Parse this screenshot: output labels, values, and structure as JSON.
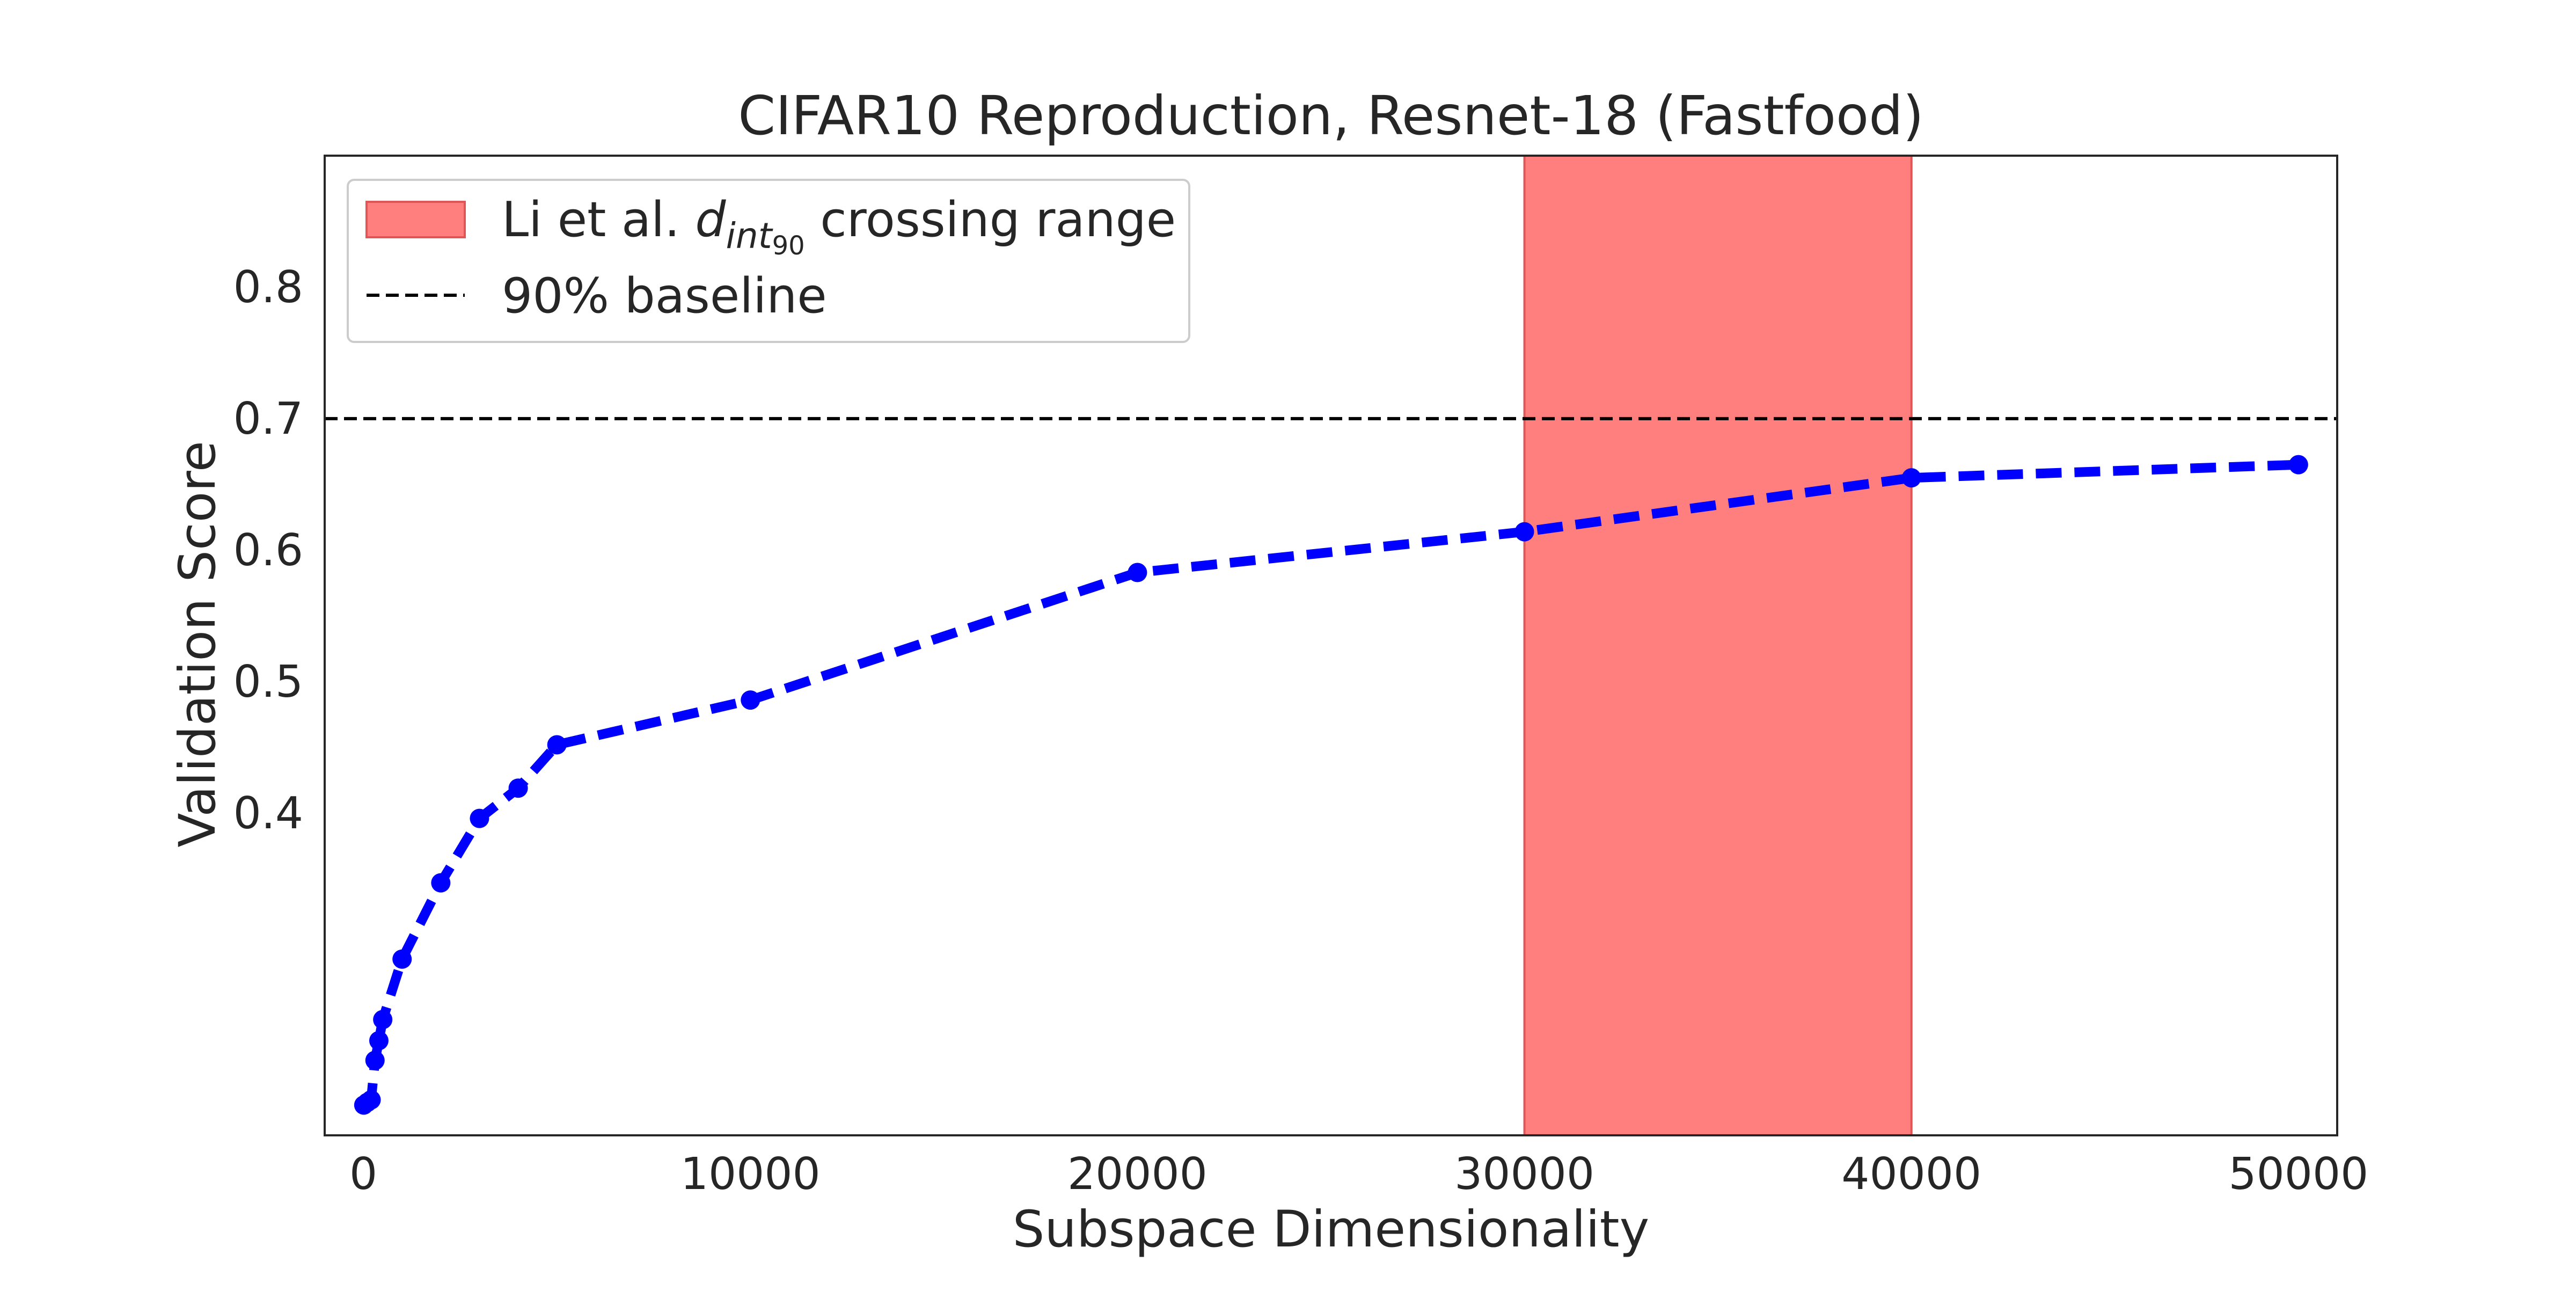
{
  "chart_data": {
    "type": "line",
    "title": "CIFAR10 Reproduction, Resnet-18 (Fastfood)",
    "xlabel": "Subspace Dimensionality",
    "ylabel": "Validation Score",
    "xlim": [
      -1000,
      51000
    ],
    "ylim": [
      0.155,
      0.9
    ],
    "xticks": [
      0,
      10000,
      20000,
      30000,
      40000,
      50000
    ],
    "xtick_labels": [
      "0",
      "10000",
      "20000",
      "30000",
      "40000",
      "50000"
    ],
    "yticks": [
      0.4,
      0.5,
      0.6,
      0.7,
      0.8
    ],
    "ytick_labels": [
      "0.4",
      "0.5",
      "0.6",
      "0.7",
      "0.8"
    ],
    "grid": false,
    "legend_position": "top-left",
    "series": [
      {
        "color": "#0000ff",
        "line_style": "dashed",
        "marker": "circle",
        "x": [
          10,
          100,
          200,
          300,
          400,
          500,
          1000,
          2000,
          3000,
          4000,
          5000,
          10000,
          20000,
          30000,
          40000,
          50000
        ],
        "y": [
          0.178,
          0.18,
          0.182,
          0.212,
          0.227,
          0.243,
          0.289,
          0.347,
          0.396,
          0.419,
          0.452,
          0.486,
          0.583,
          0.614,
          0.655,
          0.665
        ]
      }
    ],
    "span": {
      "x_start": 30000,
      "x_end": 40000,
      "color": "#ff7f7f",
      "edge_color": "#e05555",
      "label_prefix": "Li et al. ",
      "label_symbol": "d",
      "label_subscript": "int",
      "label_subsubscript": "90",
      "label_suffix": " crossing range"
    },
    "baseline": {
      "y": 0.7,
      "color": "#000000",
      "line_style": "dashed",
      "label": "90% baseline"
    }
  }
}
